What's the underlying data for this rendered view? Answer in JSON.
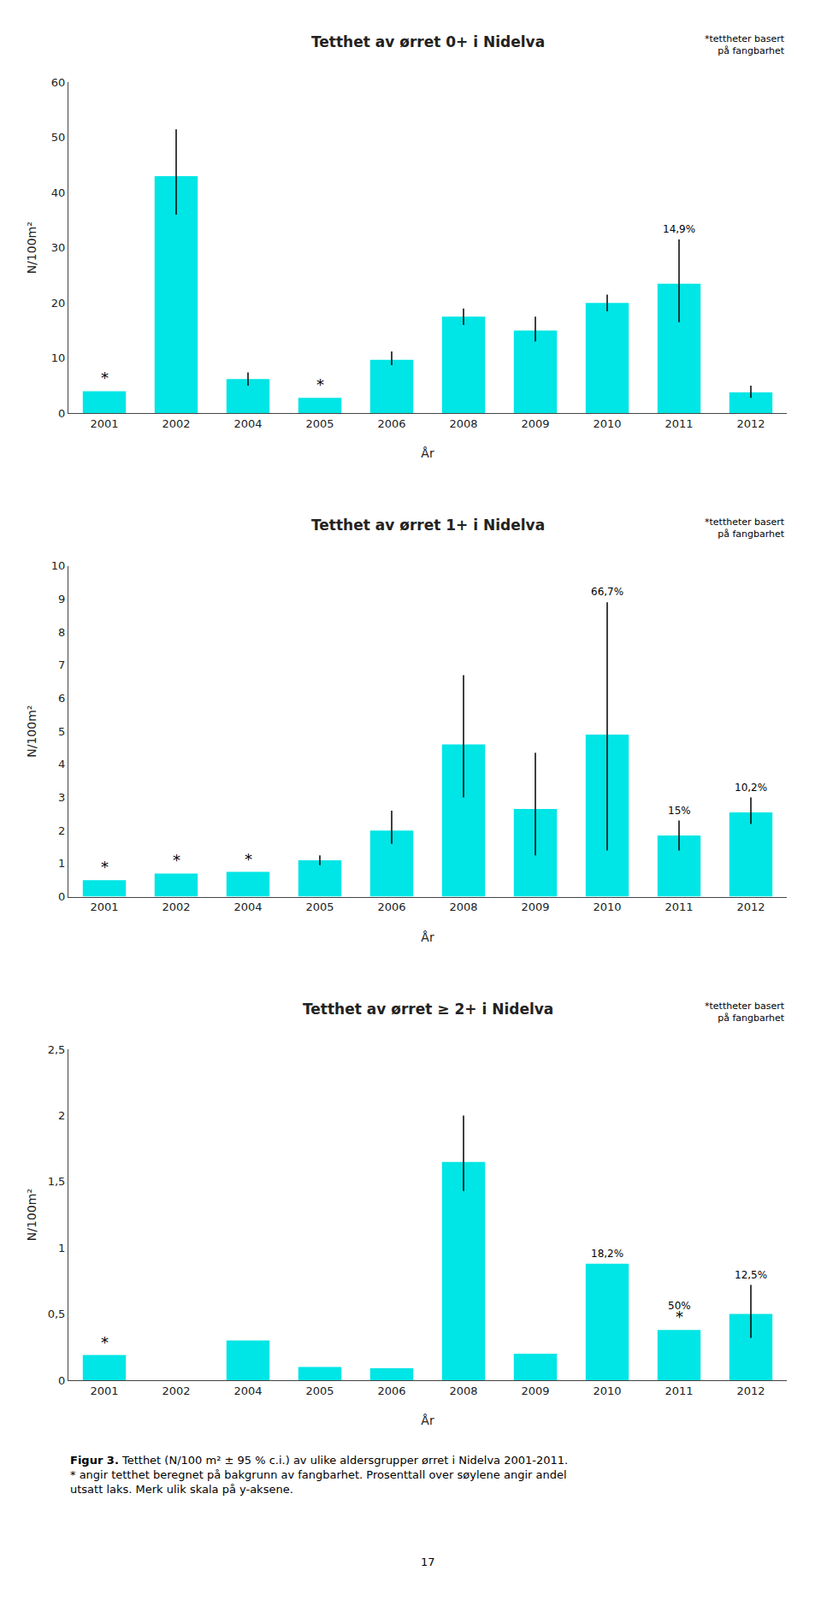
{
  "chart_data": [
    {
      "type": "bar",
      "title": "Tetthet av ørret 0+ i Nidelva",
      "categories": [
        "2001",
        "2002",
        "2004",
        "2005",
        "2006",
        "2008",
        "2009",
        "2010",
        "2011",
        "2012"
      ],
      "values": [
        4.0,
        43.0,
        6.2,
        2.8,
        9.7,
        17.5,
        15.0,
        20.0,
        23.5,
        3.8
      ],
      "error_upper": [
        0.0,
        8.5,
        1.2,
        0.0,
        1.5,
        1.5,
        2.5,
        1.5,
        8.0,
        1.2
      ],
      "error_lower": [
        0.0,
        7.0,
        1.2,
        0.0,
        1.0,
        1.5,
        2.0,
        1.5,
        7.0,
        1.0
      ],
      "color": "#00E5E5",
      "xlabel": "År",
      "ylabel": "N/100m²",
      "ylim": [
        0,
        60
      ],
      "yticks": [
        0,
        10,
        20,
        30,
        40,
        50,
        60
      ],
      "grid": false,
      "annotations": [
        {
          "x": "2001",
          "text": "*"
        },
        {
          "x": "2005",
          "text": "*"
        },
        {
          "x": "2011",
          "text": "14,9%"
        },
        {
          "text": "*tettheter basert\npå fangbarhet"
        }
      ]
    },
    {
      "type": "bar",
      "title": "Tetthet av ørret 1+ i Nidelva",
      "categories": [
        "2001",
        "2002",
        "2004",
        "2005",
        "2006",
        "2008",
        "2009",
        "2010",
        "2011",
        "2012"
      ],
      "values": [
        0.5,
        0.7,
        0.75,
        1.1,
        2.0,
        4.6,
        2.65,
        4.9,
        1.85,
        2.55
      ],
      "error_upper": [
        0.0,
        0.0,
        0.0,
        0.15,
        0.6,
        2.1,
        1.7,
        4.0,
        0.45,
        0.45
      ],
      "error_lower": [
        0.0,
        0.0,
        0.0,
        0.15,
        0.4,
        1.6,
        1.4,
        3.5,
        0.45,
        0.35
      ],
      "color": "#00E5E5",
      "xlabel": "År",
      "ylabel": "N/100m²",
      "ylim": [
        0,
        10
      ],
      "yticks": [
        0,
        1,
        2,
        3,
        4,
        5,
        6,
        7,
        8,
        9,
        10
      ],
      "grid": false,
      "annotations": [
        {
          "x": "2001",
          "text": "*"
        },
        {
          "x": "2002",
          "text": "*"
        },
        {
          "x": "2004",
          "text": "*"
        },
        {
          "x": "2010",
          "text": "66,7%"
        },
        {
          "x": "2011",
          "text": "15%"
        },
        {
          "x": "2012",
          "text": "10,2%"
        },
        {
          "text": "*tettheter basert\npå fangbarhet"
        }
      ]
    },
    {
      "type": "bar",
      "title": "Tetthet av ørret ≥ 2+ i Nidelva",
      "categories": [
        "2001",
        "2002",
        "2004",
        "2005",
        "2006",
        "2008",
        "2009",
        "2010",
        "2011",
        "2012"
      ],
      "values": [
        0.19,
        0.0,
        0.3,
        0.1,
        0.09,
        1.65,
        0.2,
        0.88,
        0.38,
        0.5
      ],
      "error_upper": [
        0.0,
        0.0,
        0.0,
        0.0,
        0.0,
        0.35,
        0.0,
        0.0,
        0.0,
        0.22
      ],
      "error_lower": [
        0.0,
        0.0,
        0.0,
        0.0,
        0.0,
        0.22,
        0.0,
        0.0,
        0.0,
        0.18
      ],
      "color": "#00E5E5",
      "xlabel": "År",
      "ylabel": "N/100m²",
      "ylim": [
        0,
        2.5
      ],
      "yticks": [
        0,
        {
          "value": 0.5,
          "label": "0,5"
        },
        1,
        {
          "value": 1.5,
          "label": "1,5"
        },
        2,
        {
          "value": 2.5,
          "label": "2,5"
        }
      ],
      "grid": false,
      "annotations": [
        {
          "x": "2001",
          "text": "*"
        },
        {
          "x": "2011",
          "text": "*"
        },
        {
          "x": "2010",
          "text": "18,2%"
        },
        {
          "x": "2011",
          "text": "50%"
        },
        {
          "x": "2012",
          "text": "12,5%"
        },
        {
          "text": "*tettheter basert\npå fangbarhet"
        }
      ]
    }
  ],
  "caption": [
    "Figur 3.",
    "Tetthet (N/100 m² ± 95 % c.i.) av ulike aldersgrupper ørret i Nidelva 2001-2011.\n* angir tetthet beregnet på bakgrunn av fangbarhet. Prosenttall over søylene angir andel\nutsatt laks. Merk ulik skala på y-aksene."
  ],
  "page_number": "17"
}
